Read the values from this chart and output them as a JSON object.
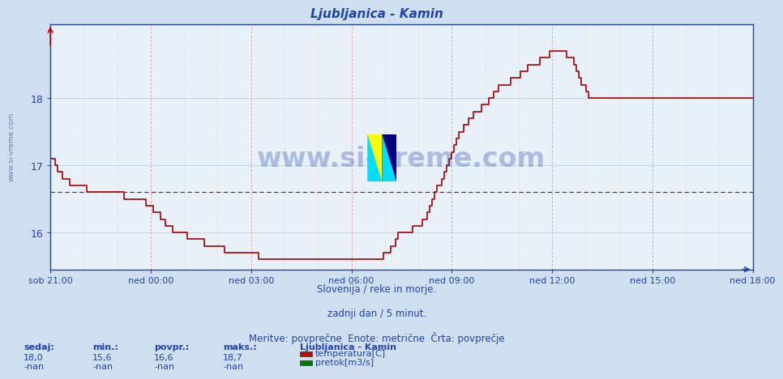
{
  "title": "Ljubljanica - Kamin",
  "bg_color": "#d0dff0",
  "plot_bg_color": "#e8f0f8",
  "line_color": "#aa0000",
  "avg_line_color": "#cc0000",
  "avg_value": 16.6,
  "y_min": 15.45,
  "y_max": 19.1,
  "y_ticks": [
    16,
    17,
    18
  ],
  "x_labels": [
    "sob 21:00",
    "ned 00:00",
    "ned 03:00",
    "ned 06:00",
    "ned 09:00",
    "ned 12:00",
    "ned 15:00",
    "ned 18:00"
  ],
  "subtitle1": "Slovenija / reke in morje.",
  "subtitle2": "zadnji dan / 5 minut.",
  "subtitle3": "Meritve: povprečne  Enote: metrične  Črta: povprečje",
  "watermark": "www.si-vreme.com",
  "station_name": "Ljubljanica - Kamin",
  "sedaj": "18,0",
  "min_val": "15,6",
  "povpr": "16,6",
  "maks": "18,7",
  "legend_items": [
    {
      "color": "#cc0000",
      "label": "temperatura[C]"
    },
    {
      "color": "#007700",
      "label": "pretok[m3/s]"
    }
  ],
  "temp_data": [
    17.1,
    17.1,
    17.0,
    16.9,
    16.9,
    16.8,
    16.8,
    16.8,
    16.7,
    16.7,
    16.7,
    16.7,
    16.7,
    16.7,
    16.7,
    16.6,
    16.6,
    16.6,
    16.6,
    16.6,
    16.6,
    16.6,
    16.6,
    16.6,
    16.6,
    16.6,
    16.6,
    16.6,
    16.6,
    16.6,
    16.5,
    16.5,
    16.5,
    16.5,
    16.5,
    16.5,
    16.5,
    16.5,
    16.5,
    16.4,
    16.4,
    16.4,
    16.3,
    16.3,
    16.3,
    16.2,
    16.2,
    16.1,
    16.1,
    16.1,
    16.0,
    16.0,
    16.0,
    16.0,
    16.0,
    16.0,
    15.9,
    15.9,
    15.9,
    15.9,
    15.9,
    15.9,
    15.9,
    15.8,
    15.8,
    15.8,
    15.8,
    15.8,
    15.8,
    15.8,
    15.8,
    15.7,
    15.7,
    15.7,
    15.7,
    15.7,
    15.7,
    15.7,
    15.7,
    15.7,
    15.7,
    15.7,
    15.7,
    15.7,
    15.7,
    15.6,
    15.6,
    15.6,
    15.6,
    15.6,
    15.6,
    15.6,
    15.6,
    15.6,
    15.6,
    15.6,
    15.6,
    15.6,
    15.6,
    15.6,
    15.6,
    15.6,
    15.6,
    15.6,
    15.6,
    15.6,
    15.6,
    15.6,
    15.6,
    15.6,
    15.6,
    15.6,
    15.6,
    15.6,
    15.6,
    15.6,
    15.6,
    15.6,
    15.6,
    15.6,
    15.6,
    15.6,
    15.6,
    15.6,
    15.6,
    15.6,
    15.6,
    15.6,
    15.6,
    15.6,
    15.6,
    15.6,
    15.6,
    15.6,
    15.6,
    15.6,
    15.7,
    15.7,
    15.7,
    15.8,
    15.8,
    15.9,
    16.0,
    16.0,
    16.0,
    16.0,
    16.0,
    16.0,
    16.1,
    16.1,
    16.1,
    16.1,
    16.2,
    16.2,
    16.3,
    16.4,
    16.5,
    16.6,
    16.7,
    16.7,
    16.8,
    16.9,
    17.0,
    17.1,
    17.2,
    17.3,
    17.4,
    17.5,
    17.5,
    17.6,
    17.6,
    17.7,
    17.7,
    17.8,
    17.8,
    17.8,
    17.9,
    17.9,
    17.9,
    18.0,
    18.0,
    18.1,
    18.1,
    18.2,
    18.2,
    18.2,
    18.2,
    18.2,
    18.3,
    18.3,
    18.3,
    18.3,
    18.4,
    18.4,
    18.4,
    18.5,
    18.5,
    18.5,
    18.5,
    18.5,
    18.6,
    18.6,
    18.6,
    18.6,
    18.7,
    18.7,
    18.7,
    18.7,
    18.7,
    18.7,
    18.7,
    18.6,
    18.6,
    18.6,
    18.5,
    18.4,
    18.3,
    18.2,
    18.2,
    18.1,
    18.0,
    18.0,
    18.0,
    18.0,
    18.0,
    18.0,
    18.0,
    18.0,
    18.0,
    18.0,
    18.0,
    18.0,
    18.0,
    18.0,
    18.0,
    18.0,
    18.0,
    18.0,
    18.0,
    18.0,
    18.0,
    18.0,
    18.0,
    18.0,
    18.0,
    18.0,
    18.0,
    18.0,
    18.0,
    18.0,
    18.0,
    18.0,
    18.0,
    18.0,
    18.0,
    18.0,
    18.0,
    18.0,
    18.0,
    18.0,
    18.0,
    18.0,
    18.0,
    18.0,
    18.0,
    18.0,
    18.0,
    18.0,
    18.0,
    18.0,
    18.0,
    18.0,
    18.0,
    18.0,
    18.0,
    18.0,
    18.0,
    18.0,
    18.0,
    18.0,
    18.0,
    18.0,
    18.0,
    18.0,
    18.0,
    18.0,
    18.0,
    18.0
  ]
}
